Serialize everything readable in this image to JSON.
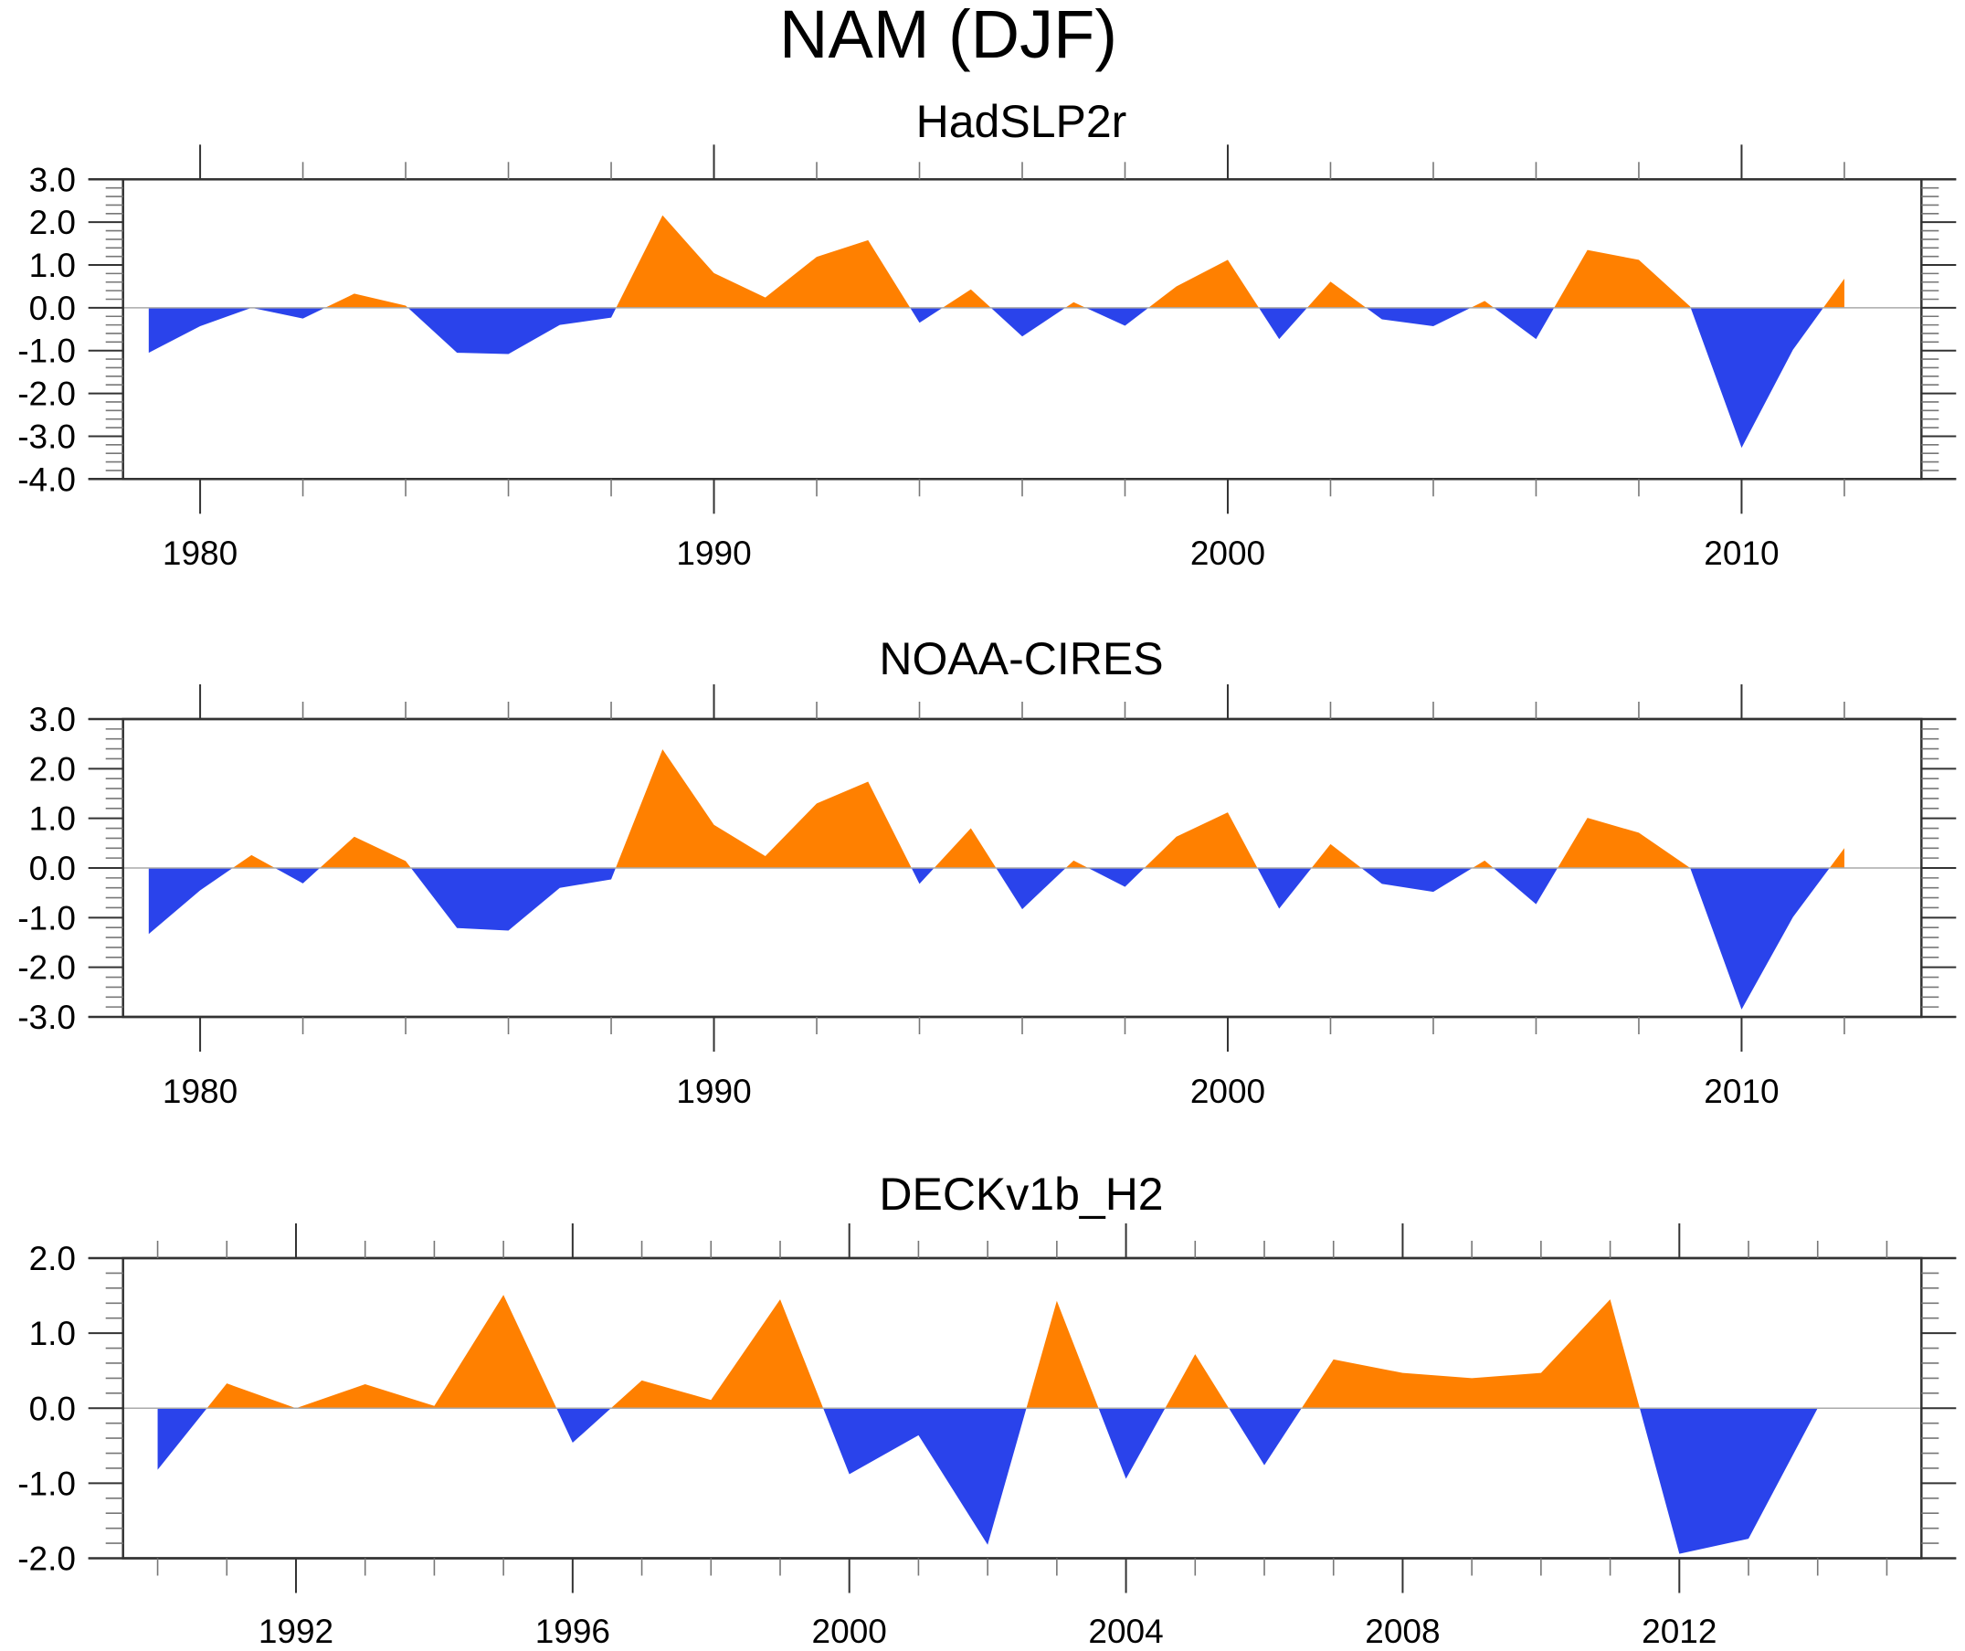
{
  "figure": {
    "title": "NAM (DJF)"
  },
  "colors": {
    "positive": "#ff8000",
    "negative": "#2a43eb",
    "zero_line": "#aaaaaa",
    "frame": "#333333"
  },
  "chart_data": [
    {
      "type": "area",
      "title": "HadSLP2r",
      "xlabel": "",
      "ylabel": "",
      "xlim": [
        1978.5,
        2013.5
      ],
      "ylim": [
        -4.0,
        3.0
      ],
      "x_major_ticks": [
        1980,
        1990,
        2000,
        2010
      ],
      "x_tick_labels": [
        "1980",
        "1990",
        "2000",
        "2010"
      ],
      "x_minor_step": 2,
      "y_major_ticks": [
        3.0,
        2.0,
        1.0,
        0.0,
        -1.0,
        -2.0,
        -3.0,
        -4.0
      ],
      "y_tick_labels": [
        "3.0",
        "2.0",
        "1.0",
        "0.0",
        "-1.0",
        "-2.0",
        "-3.0",
        "-4.0"
      ],
      "y_minor_step": 0.2,
      "grid": false,
      "fill_above_zero": "positive",
      "fill_below_zero": "negative",
      "x": [
        1979,
        1980,
        1981,
        1982,
        1983,
        1984,
        1985,
        1986,
        1987,
        1988,
        1989,
        1990,
        1991,
        1992,
        1993,
        1994,
        1995,
        1996,
        1997,
        1998,
        1999,
        2000,
        2001,
        2002,
        2003,
        2004,
        2005,
        2006,
        2007,
        2008,
        2009,
        2010,
        2011,
        2012
      ],
      "values": [
        -1.05,
        -0.43,
        0.0,
        -0.25,
        0.33,
        0.05,
        -1.05,
        -1.08,
        -0.4,
        -0.23,
        2.16,
        0.81,
        0.24,
        1.19,
        1.58,
        -0.35,
        0.43,
        -0.67,
        0.13,
        -0.42,
        0.5,
        1.12,
        -0.73,
        0.61,
        -0.27,
        -0.43,
        0.16,
        -0.73,
        1.35,
        1.12,
        0.03,
        -3.27,
        -0.98,
        0.68
      ]
    },
    {
      "type": "area",
      "title": "NOAA-CIRES",
      "xlabel": "",
      "ylabel": "",
      "xlim": [
        1978.5,
        2013.5
      ],
      "ylim": [
        -3.0,
        3.0
      ],
      "x_major_ticks": [
        1980,
        1990,
        2000,
        2010
      ],
      "x_tick_labels": [
        "1980",
        "1990",
        "2000",
        "2010"
      ],
      "x_minor_step": 2,
      "y_major_ticks": [
        3.0,
        2.0,
        1.0,
        0.0,
        -1.0,
        -2.0,
        -3.0
      ],
      "y_tick_labels": [
        "3.0",
        "2.0",
        "1.0",
        "0.0",
        "-1.0",
        "-2.0",
        "-3.0"
      ],
      "y_minor_step": 0.2,
      "grid": false,
      "fill_above_zero": "positive",
      "fill_below_zero": "negative",
      "x": [
        1979,
        1980,
        1981,
        1982,
        1983,
        1984,
        1985,
        1986,
        1987,
        1988,
        1989,
        1990,
        1991,
        1992,
        1993,
        1994,
        1995,
        1996,
        1997,
        1998,
        1999,
        2000,
        2001,
        2002,
        2003,
        2004,
        2005,
        2006,
        2007,
        2008,
        2009,
        2010,
        2011,
        2012
      ],
      "values": [
        -1.33,
        -0.45,
        0.26,
        -0.31,
        0.63,
        0.14,
        -1.21,
        -1.26,
        -0.4,
        -0.23,
        2.39,
        0.87,
        0.24,
        1.3,
        1.74,
        -0.32,
        0.8,
        -0.83,
        0.15,
        -0.38,
        0.63,
        1.12,
        -0.82,
        0.48,
        -0.32,
        -0.48,
        0.15,
        -0.73,
        1.01,
        0.71,
        0.0,
        -2.85,
        -0.99,
        0.4
      ]
    },
    {
      "type": "area",
      "title": "DECKv1b_H2",
      "xlabel": "",
      "ylabel": "",
      "xlim": [
        1989.5,
        2015.5
      ],
      "ylim": [
        -2.0,
        2.0
      ],
      "x_major_ticks": [
        1992,
        1996,
        2000,
        2004,
        2008,
        2012
      ],
      "x_tick_labels": [
        "1992",
        "1996",
        "2000",
        "2004",
        "2008",
        "2012"
      ],
      "x_minor_step": 1,
      "y_major_ticks": [
        2.0,
        1.0,
        0.0,
        -1.0,
        -2.0
      ],
      "y_tick_labels": [
        "2.0",
        "1.0",
        "0.0",
        "-1.0",
        "-2.0"
      ],
      "y_minor_step": 0.2,
      "grid": false,
      "fill_above_zero": "positive",
      "fill_below_zero": "negative",
      "x": [
        1990,
        1991,
        1992,
        1993,
        1994,
        1995,
        1996,
        1997,
        1998,
        1999,
        2000,
        2001,
        2002,
        2003,
        2004,
        2005,
        2006,
        2007,
        2008,
        2009,
        2010,
        2011,
        2012,
        2013,
        2014
      ],
      "values": [
        -0.82,
        0.33,
        0.0,
        0.32,
        0.03,
        1.51,
        -0.46,
        0.37,
        0.11,
        1.45,
        -0.88,
        -0.36,
        -1.82,
        1.43,
        -0.94,
        0.72,
        -0.76,
        0.65,
        0.47,
        0.4,
        0.47,
        1.45,
        -1.94,
        -1.74,
        0.0
      ]
    }
  ]
}
